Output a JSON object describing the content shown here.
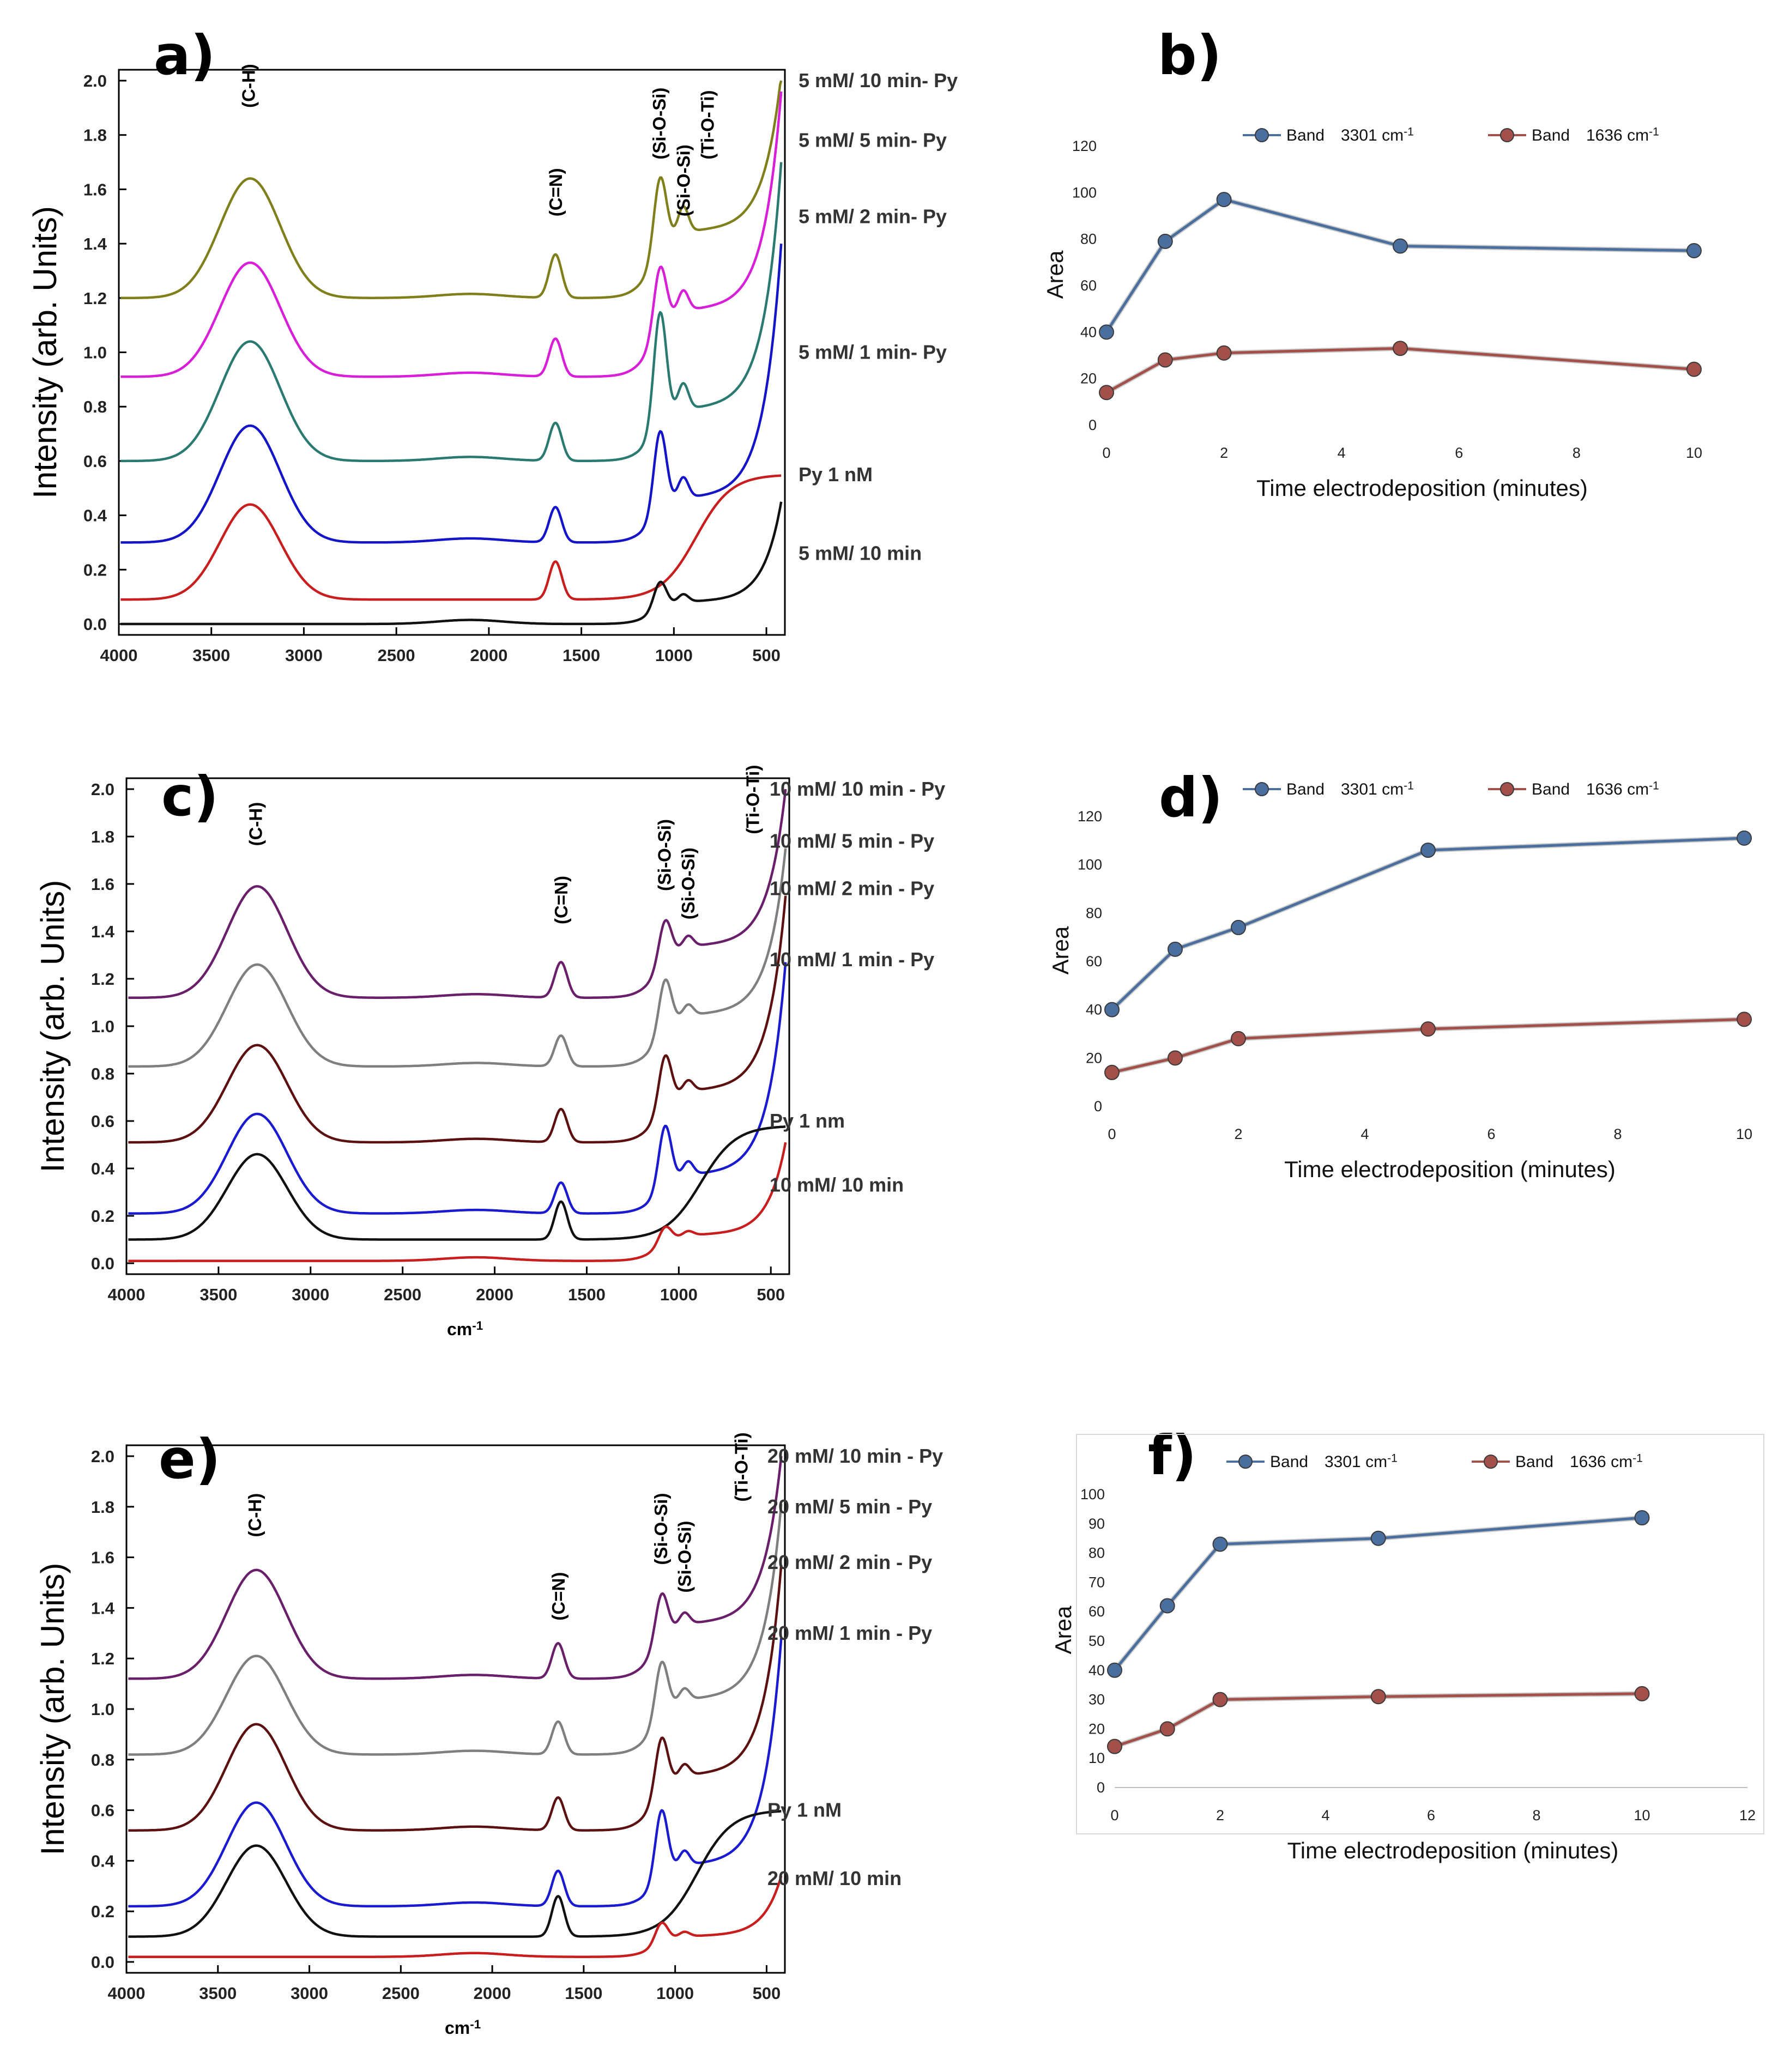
{
  "chart_data": [
    {
      "id": "a",
      "type": "line",
      "letter": "a)",
      "title": "",
      "xlabel": "",
      "ylabel": "Intensity (arb. Units)",
      "xlim": [
        4000,
        400
      ],
      "ylim": [
        0,
        2.0
      ],
      "xticks": [
        4000,
        3500,
        3000,
        2500,
        2000,
        1500,
        1000,
        500
      ],
      "yticks": [
        "0.0",
        "0.2",
        "0.4",
        "0.6",
        "0.8",
        "1.0",
        "1.2",
        "1.4",
        "1.6",
        "1.8",
        "2.0"
      ],
      "band_labels": [
        {
          "text": "(C-H)",
          "x": 3300,
          "y": 1.9
        },
        {
          "text": "(C=N)",
          "x": 1640,
          "y": 1.5
        },
        {
          "text": "(Si-O-Si)",
          "x": 1080,
          "y": 1.71
        },
        {
          "text": "(Si-O-Si)",
          "x": 950,
          "y": 1.5
        },
        {
          "text": "(Ti-O-Ti)",
          "x": 820,
          "y": 1.71
        }
      ],
      "series": [
        {
          "name": "5 mM/ 10 min- Py",
          "label_y": 2.0,
          "color": "#7f7f1b",
          "base": 1.2,
          "ch": 0.44,
          "cn": 0.16,
          "si1": 0.28,
          "si2": 0.1,
          "tail": 0.45,
          "end": 0.82
        },
        {
          "name": "5 mM/ 5 min- Py",
          "label_y": 1.78,
          "color": "#d81ed8",
          "base": 0.91,
          "ch": 0.42,
          "cn": 0.14,
          "si1": 0.24,
          "si2": 0.08,
          "tail": 0.45,
          "end": 1.05
        },
        {
          "name": "5 mM/ 2 min- Py",
          "label_y": 1.5,
          "color": "#2a7a72",
          "base": 0.6,
          "ch": 0.44,
          "cn": 0.14,
          "si1": 0.42,
          "si2": 0.1,
          "tail": 0.35,
          "end": 1.1
        },
        {
          "name": "5 mM/ 1 min- Py",
          "label_y": 1.0,
          "color": "#1414c8",
          "base": 0.3,
          "ch": 0.43,
          "cn": 0.13,
          "si1": 0.3,
          "si2": 0.08,
          "tail": 0.3,
          "end": 1.1
        },
        {
          "name": "Py 1 nM",
          "label_y": 0.55,
          "color": "#c81e1e",
          "base": 0.09,
          "ch": 0.35,
          "cn": 0.14,
          "si1": 0.0,
          "si2": 0.0,
          "tail": 0.0,
          "end": 0.0,
          "pyr": 0.46
        },
        {
          "name": "5 mM/ 10 min",
          "label_y": 0.26,
          "color": "#111111",
          "base": 0.0,
          "ch": 0.0,
          "cn": 0.0,
          "si1": 0.1,
          "si2": 0.03,
          "tail": 0.15,
          "end": 0.45
        }
      ]
    },
    {
      "id": "b",
      "type": "line",
      "letter": "b)",
      "xlabel": "Time electrodeposition (minutes)",
      "ylabel": "Area",
      "xlim": [
        0,
        10
      ],
      "ylim": [
        0,
        120
      ],
      "xticks": [
        0,
        2,
        4,
        6,
        8,
        10
      ],
      "yticks": [
        0,
        20,
        40,
        60,
        80,
        100,
        120
      ],
      "legend": [
        {
          "name": "Band",
          "value": "3301 cm",
          "sup": "-1"
        },
        {
          "name": "Band",
          "value": "1636 cm",
          "sup": "-1"
        }
      ],
      "series": [
        {
          "name": "Band 3301 cm-1",
          "color": "#4a6f9e",
          "x": [
            0,
            1,
            2,
            5,
            10
          ],
          "y": [
            40,
            79,
            97,
            77,
            75
          ]
        },
        {
          "name": "Band 1636 cm-1",
          "color": "#a3504a",
          "x": [
            0,
            1,
            2,
            5,
            10
          ],
          "y": [
            14,
            28,
            31,
            33,
            24
          ]
        }
      ]
    },
    {
      "id": "c",
      "type": "line",
      "letter": "c)",
      "xlabel": "cm",
      "xlabel_sup": "-1",
      "ylabel": "Intensity (arb. Units)",
      "xlim": [
        4000,
        400
      ],
      "ylim": [
        0,
        2.0
      ],
      "xticks": [
        4000,
        3500,
        3000,
        2500,
        2000,
        1500,
        1000,
        500
      ],
      "yticks": [
        "0.0",
        "0.2",
        "0.4",
        "0.6",
        "0.8",
        "1.0",
        "1.2",
        "1.4",
        "1.6",
        "1.8",
        "2.0"
      ],
      "band_labels": [
        {
          "text": "(C-H)",
          "x": 3300,
          "y": 1.76
        },
        {
          "text": "(C=N)",
          "x": 1640,
          "y": 1.43
        },
        {
          "text": "(Si-O-Si)",
          "x": 1080,
          "y": 1.57
        },
        {
          "text": "(Si-O-Si)",
          "x": 950,
          "y": 1.45
        },
        {
          "text": "(Ti-O-Ti)",
          "x": 600,
          "y": 1.81
        }
      ],
      "series": [
        {
          "name": "10 mM/ 10 min - Py",
          "label_y": 2.0,
          "color": "#6a1f6a",
          "base": 1.12,
          "ch": 0.47,
          "cn": 0.15,
          "si1": 0.18,
          "si2": 0.05,
          "tail": 0.4,
          "end": 0.88
        },
        {
          "name": "10 mM/ 5 min - Py",
          "label_y": 1.78,
          "color": "#7f7f7f",
          "base": 0.83,
          "ch": 0.43,
          "cn": 0.13,
          "si1": 0.22,
          "si2": 0.05,
          "tail": 0.4,
          "end": 0.92
        },
        {
          "name": "10 mM/ 2 min - Py",
          "label_y": 1.58,
          "color": "#5c1010",
          "base": 0.51,
          "ch": 0.41,
          "cn": 0.14,
          "si1": 0.22,
          "si2": 0.05,
          "tail": 0.4,
          "end": 1.04
        },
        {
          "name": "10 mM/ 1 min - Py",
          "label_y": 1.28,
          "color": "#1a1ad0",
          "base": 0.21,
          "ch": 0.42,
          "cn": 0.13,
          "si1": 0.26,
          "si2": 0.06,
          "tail": 0.3,
          "end": 1.06
        },
        {
          "name": "Py 1 nm",
          "label_y": 0.6,
          "color": "#111111",
          "base": 0.1,
          "ch": 0.36,
          "cn": 0.16,
          "si1": 0.0,
          "si2": 0.0,
          "tail": 0.0,
          "end": 0.0,
          "pyr": 0.48
        },
        {
          "name": "10 mM/ 10 min",
          "label_y": 0.33,
          "color": "#c81e1e",
          "base": 0.01,
          "ch": 0.0,
          "cn": 0.0,
          "si1": 0.07,
          "si2": 0.02,
          "tail": 0.2,
          "end": 0.5
        }
      ]
    },
    {
      "id": "d",
      "type": "line",
      "letter": "d)",
      "xlabel": "Time electrodeposition (minutes)",
      "ylabel": "Area",
      "xlim": [
        0,
        10
      ],
      "ylim": [
        0,
        120
      ],
      "xticks": [
        0,
        2,
        4,
        6,
        8,
        10
      ],
      "yticks": [
        0,
        20,
        40,
        60,
        80,
        100,
        120
      ],
      "legend": [
        {
          "name": "Band",
          "value": "3301 cm",
          "sup": "-1"
        },
        {
          "name": "Band",
          "value": "1636 cm",
          "sup": "-1"
        }
      ],
      "series": [
        {
          "name": "Band 3301 cm-1",
          "color": "#4a6f9e",
          "x": [
            0,
            1,
            2,
            5,
            10
          ],
          "y": [
            40,
            65,
            74,
            106,
            111
          ]
        },
        {
          "name": "Band 1636 cm-1",
          "color": "#a3504a",
          "x": [
            0,
            1,
            2,
            5,
            10
          ],
          "y": [
            14,
            20,
            28,
            32,
            36
          ]
        }
      ]
    },
    {
      "id": "e",
      "type": "line",
      "letter": "e)",
      "xlabel": "cm",
      "xlabel_sup": "-1",
      "ylabel": "Intensity (arb. Units)",
      "xlim": [
        4000,
        400
      ],
      "ylim": [
        0,
        2.0
      ],
      "xticks": [
        4000,
        3500,
        3000,
        2500,
        2000,
        1500,
        1000,
        500
      ],
      "yticks": [
        "0.0",
        "0.2",
        "0.4",
        "0.6",
        "0.8",
        "1.0",
        "1.2",
        "1.4",
        "1.6",
        "1.8",
        "2.0"
      ],
      "band_labels": [
        {
          "text": "(C-H)",
          "x": 3300,
          "y": 1.68
        },
        {
          "text": "(C=N)",
          "x": 1640,
          "y": 1.35
        },
        {
          "text": "(Si-O-Si)",
          "x": 1080,
          "y": 1.57
        },
        {
          "text": "(Si-O-Si)",
          "x": 950,
          "y": 1.46
        },
        {
          "text": "(Ti-O-Ti)",
          "x": 640,
          "y": 1.82
        }
      ],
      "series": [
        {
          "name": "20 mM/ 10 min - Py",
          "label_y": 2.0,
          "color": "#6a1f6a",
          "base": 1.12,
          "ch": 0.43,
          "cn": 0.14,
          "si1": 0.19,
          "si2": 0.05,
          "tail": 0.4,
          "end": 0.88
        },
        {
          "name": "20 mM/ 5 min - Py",
          "label_y": 1.8,
          "color": "#7f7f7f",
          "base": 0.82,
          "ch": 0.39,
          "cn": 0.13,
          "si1": 0.22,
          "si2": 0.05,
          "tail": 0.4,
          "end": 0.99
        },
        {
          "name": "20 mM/ 2 min - Py",
          "label_y": 1.58,
          "color": "#5c1010",
          "base": 0.52,
          "ch": 0.42,
          "cn": 0.13,
          "si1": 0.22,
          "si2": 0.05,
          "tail": 0.4,
          "end": 1.05
        },
        {
          "name": "20 mM/ 1 min - Py",
          "label_y": 1.3,
          "color": "#1a1ad0",
          "base": 0.22,
          "ch": 0.41,
          "cn": 0.14,
          "si1": 0.27,
          "si2": 0.06,
          "tail": 0.3,
          "end": 1.06
        },
        {
          "name": "Py 1 nM",
          "label_y": 0.6,
          "color": "#111111",
          "base": 0.1,
          "ch": 0.36,
          "cn": 0.16,
          "si1": 0.0,
          "si2": 0.0,
          "tail": 0.0,
          "end": 0.0,
          "pyr": 0.5
        },
        {
          "name": "20 mM/ 10 min",
          "label_y": 0.33,
          "color": "#c81e1e",
          "base": 0.02,
          "ch": 0.0,
          "cn": 0.0,
          "si1": 0.08,
          "si2": 0.02,
          "tail": 0.15,
          "end": 0.32
        }
      ]
    },
    {
      "id": "f",
      "type": "line",
      "letter": "f)",
      "xlabel": "Time electrodeposition (minutes)",
      "ylabel": "Area",
      "xlim": [
        0,
        12
      ],
      "ylim": [
        0,
        100
      ],
      "xticks": [
        0,
        2,
        4,
        6,
        8,
        10,
        12
      ],
      "yticks": [
        0,
        10,
        20,
        30,
        40,
        50,
        60,
        70,
        80,
        90,
        100
      ],
      "legend": [
        {
          "name": "Band",
          "value": "3301 cm",
          "sup": "-1"
        },
        {
          "name": "Band",
          "value": "1636 cm",
          "sup": "-1"
        }
      ],
      "series": [
        {
          "name": "Band 3301 cm-1",
          "color": "#4a6f9e",
          "x": [
            0,
            1,
            2,
            5,
            10
          ],
          "y": [
            40,
            62,
            83,
            85,
            92
          ]
        },
        {
          "name": "Band 1636 cm-1",
          "color": "#a3504a",
          "x": [
            0,
            1,
            2,
            5,
            10
          ],
          "y": [
            14,
            20,
            30,
            31,
            32
          ]
        }
      ]
    }
  ]
}
